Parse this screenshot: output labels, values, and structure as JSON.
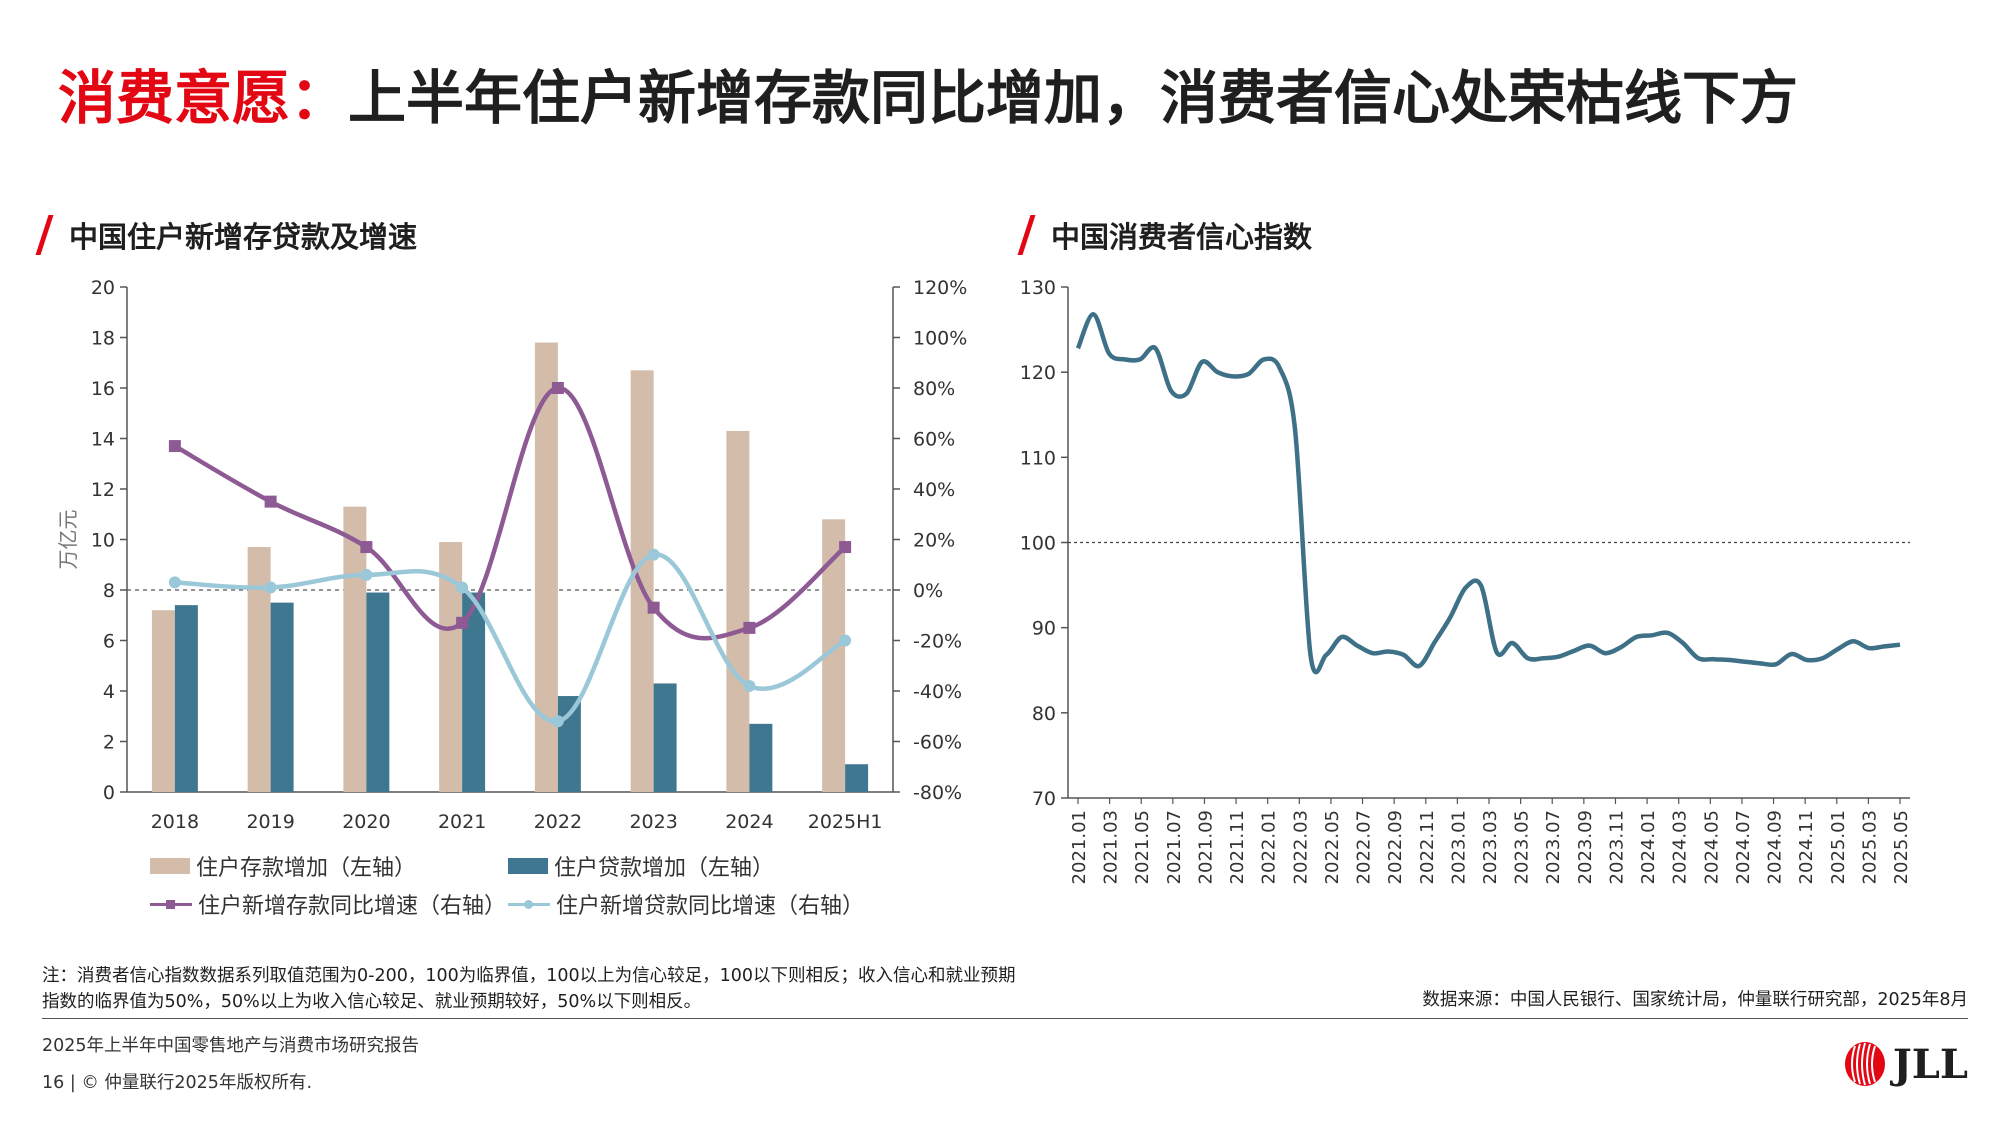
{
  "slide_title": {
    "highlight": "消费意愿：",
    "rest": "上半年住户新增存款同比增加，消费者信心处荣枯线下方"
  },
  "colors": {
    "accent_red": "#e30613",
    "deposit_bar": "#d4bcaa",
    "loan_bar": "#3f7790",
    "deposit_growth": "#8e5a94",
    "loan_growth": "#9bc8d8",
    "confidence_line": "#3e7187"
  },
  "chart_data": [
    {
      "type": "bar",
      "title": "中国住户新增存贷款及增速",
      "categories": [
        "2018",
        "2019",
        "2020",
        "2021",
        "2022",
        "2023",
        "2024",
        "2025H1"
      ],
      "ylabel": "万亿元",
      "ylim": [
        0,
        20
      ],
      "y_ticks": [
        "0",
        "2",
        "4",
        "6",
        "8",
        "10",
        "12",
        "14",
        "16",
        "18",
        "20"
      ],
      "y2lim": [
        -80,
        120
      ],
      "y2_ticks": [
        "-80%",
        "-60%",
        "-40%",
        "-20%",
        "0%",
        "20%",
        "40%",
        "60%",
        "80%",
        "100%",
        "120%"
      ],
      "zero_line": "dashed",
      "series": [
        {
          "name": "住户存款增加（左轴）",
          "type": "bar",
          "axis": "left",
          "values": [
            7.2,
            9.7,
            11.3,
            9.9,
            17.8,
            16.7,
            14.3,
            10.8
          ]
        },
        {
          "name": "住户贷款增加（左轴）",
          "type": "bar",
          "axis": "left",
          "values": [
            7.4,
            7.5,
            7.9,
            7.9,
            3.8,
            4.3,
            2.7,
            1.1
          ]
        },
        {
          "name": "住户新增存款同比增速（右轴）",
          "type": "line",
          "axis": "right",
          "marker": "square",
          "values": [
            57,
            35,
            17,
            -13,
            80,
            -7,
            -15,
            17
          ]
        },
        {
          "name": "住户新增贷款同比增速（右轴）",
          "type": "line",
          "axis": "right",
          "marker": "circle",
          "values": [
            3,
            1,
            6,
            1,
            -52,
            14,
            -38,
            -20
          ]
        }
      ],
      "legend": "bottom"
    },
    {
      "type": "line",
      "title": "中国消费者信心指数",
      "ylim": [
        70,
        130
      ],
      "y_ticks": [
        "70",
        "80",
        "90",
        "100",
        "110",
        "120",
        "130"
      ],
      "reference_line": 100,
      "x_tick_labels": [
        "2021.01",
        "2021.03",
        "2021.05",
        "2021.07",
        "2021.09",
        "2021.11",
        "2022.01",
        "2022.03",
        "2022.05",
        "2022.07",
        "2022.09",
        "2022.11",
        "2023.01",
        "2023.03",
        "2023.05",
        "2023.07",
        "2023.09",
        "2023.11",
        "2024.01",
        "2024.03",
        "2024.05",
        "2024.07",
        "2024.09",
        "2024.11",
        "2025.01",
        "2025.03",
        "2025.05"
      ],
      "series": [
        {
          "values": [
            122.8,
            126.8,
            122.2,
            121.5,
            121.5,
            122.8,
            117.8,
            117.5,
            121.2,
            120.0,
            119.5,
            119.8,
            121.5,
            120.5,
            113.2,
            86.7,
            86.8,
            88.9,
            87.9,
            87.0,
            87.2,
            86.8,
            85.5,
            88.3,
            91.2,
            94.7,
            94.9,
            87.1,
            88.2,
            86.4,
            86.4,
            86.6,
            87.3,
            87.9,
            87.0,
            87.7,
            88.9,
            89.1,
            89.4,
            88.2,
            86.4,
            86.3,
            86.2,
            86.0,
            85.8,
            85.7,
            86.9,
            86.2,
            86.4,
            87.5,
            88.4,
            87.6,
            87.8,
            88.0
          ]
        }
      ]
    }
  ],
  "note": "注：消费者信心指数数据系列取值范围为0-200，100为临界值，100以上为信心较足，100以下则相反；收入信心和就业预期指数的临界值为50%，50%以上为收入信心较足、就业预期较好，50%以下则相反。",
  "source": "数据来源：中国人民银行、国家统计局，仲量联行研究部，2025年8月",
  "footer": {
    "report_name": "2025年上半年中国零售地产与消费市场研究报告",
    "page_number": "16",
    "separator": "|",
    "copyright": "© 仲量联行2025年版权所有.",
    "logo_text": "JLL"
  }
}
